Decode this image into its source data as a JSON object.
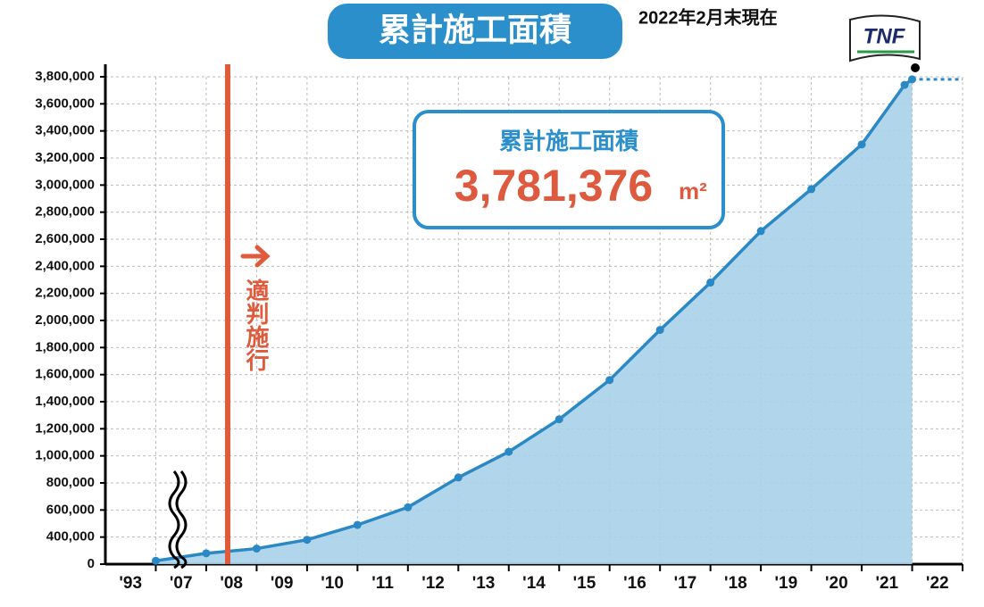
{
  "chart_data": {
    "type": "area",
    "title": "累計施工面積",
    "subtitle": "2022年2月末現在",
    "logo": "TNF",
    "annotation": "適判施行",
    "highlight": {
      "label": "累計施工面積",
      "value": 3781376,
      "value_label": "3,781,376",
      "unit": "m²"
    },
    "categories": [
      "'93",
      "'07",
      "'08",
      "'09",
      "'10",
      "'11",
      "'12",
      "'13",
      "'14",
      "'15",
      "'16",
      "'17",
      "'18",
      "'19",
      "'20",
      "'21",
      "'22"
    ],
    "series": [
      {
        "color": "#2a88c4",
        "fill": "#a9d2ea",
        "values": [
          50000,
          160000,
          230000,
          360000,
          490000,
          620000,
          840000,
          1030000,
          1270000,
          1560000,
          1930000,
          2280000,
          2660000,
          2970000,
          3300000,
          3740000,
          3781376
        ]
      }
    ],
    "ylim": [
      0,
      3800000
    ],
    "yticks": [
      0,
      {
        "value": 400000,
        "label": "400,000"
      },
      {
        "value": 600000,
        "label": "600,000"
      },
      {
        "value": 800000,
        "label": "800,000"
      },
      {
        "value": 1000000,
        "label": "1,000,000"
      },
      {
        "value": 1200000,
        "label": "1,200,000"
      },
      {
        "value": 1400000,
        "label": "1,400,000"
      },
      {
        "value": 1600000,
        "label": "1,600,000"
      },
      {
        "value": 1800000,
        "label": "1,800,000"
      },
      {
        "value": 2000000,
        "label": "2,000,000"
      },
      {
        "value": 2200000,
        "label": "2,200,000"
      },
      {
        "value": 2400000,
        "label": "2,400,000"
      },
      {
        "value": 2600000,
        "label": "2,600,000"
      },
      {
        "value": 2800000,
        "label": "2,800,000"
      },
      {
        "value": 3000000,
        "label": "3,000,000"
      },
      {
        "value": 3200000,
        "label": "3,200,000"
      },
      {
        "value": 3400000,
        "label": "3,400,000"
      },
      {
        "value": 3600000,
        "label": "3,600,000"
      },
      {
        "value": 3800000,
        "label": "3,800,000"
      }
    ],
    "grid": true
  }
}
